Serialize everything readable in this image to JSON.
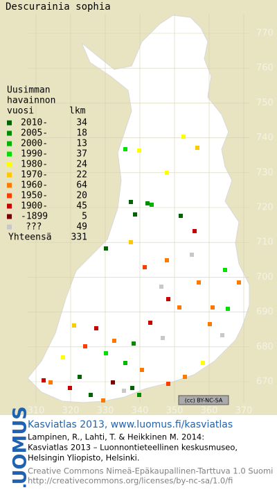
{
  "title": "Descurainia sophia",
  "legend": {
    "heading": [
      "Uusimman",
      "havainnon"
    ],
    "year_header": "vuosi",
    "count_header": "lkm",
    "entries": [
      {
        "label": "2010-",
        "count": 34,
        "color": "#006400"
      },
      {
        "label": "2005-",
        "count": 18,
        "color": "#008c00"
      },
      {
        "label": "2000-",
        "count": 13,
        "color": "#00b400"
      },
      {
        "label": "1990-",
        "count": 37,
        "color": "#00e000"
      },
      {
        "label": "1980-",
        "count": 24,
        "color": "#ffff00"
      },
      {
        "label": "1970-",
        "count": 22,
        "color": "#ffc800"
      },
      {
        "label": "1960-",
        "count": 64,
        "color": "#ff7800"
      },
      {
        "label": "1950-",
        "count": 20,
        "color": "#ff3c00"
      },
      {
        "label": "1900-",
        "count": 45,
        "color": "#c80000"
      },
      {
        "label": "-1899",
        "count": 5,
        "color": "#780000"
      },
      {
        "label": "???",
        "count": 49,
        "color": "#c8c8c8"
      }
    ],
    "total_label": "Yhteensä",
    "total": 331
  },
  "grid": {
    "north": [
      770,
      760,
      750,
      740,
      730,
      720,
      710,
      700,
      690,
      680,
      670
    ],
    "east": [
      310,
      320,
      330,
      340,
      350,
      360,
      370
    ]
  },
  "badge": "(cc) BY-NC-SA",
  "footer": {
    "logo": "LUOMUS",
    "link": "Kasviatlas 2013, www.luomus.fi/kasviatlas",
    "citation": [
      "Lampinen, R., Lahti, T. & Heikkinen M. 2014:",
      "Kasviatlas 2013 – Luonnontieteellinen keskusmuseo,",
      "Helsingin Yliopisto, Helsinki."
    ],
    "license": [
      "Creative Commons Nimeä-Epäkaupallinen-Tarttuva 1.0 Suomi",
      "http://creativecommons.org/licenses/by-nc-sa/1.0/fi"
    ]
  }
}
